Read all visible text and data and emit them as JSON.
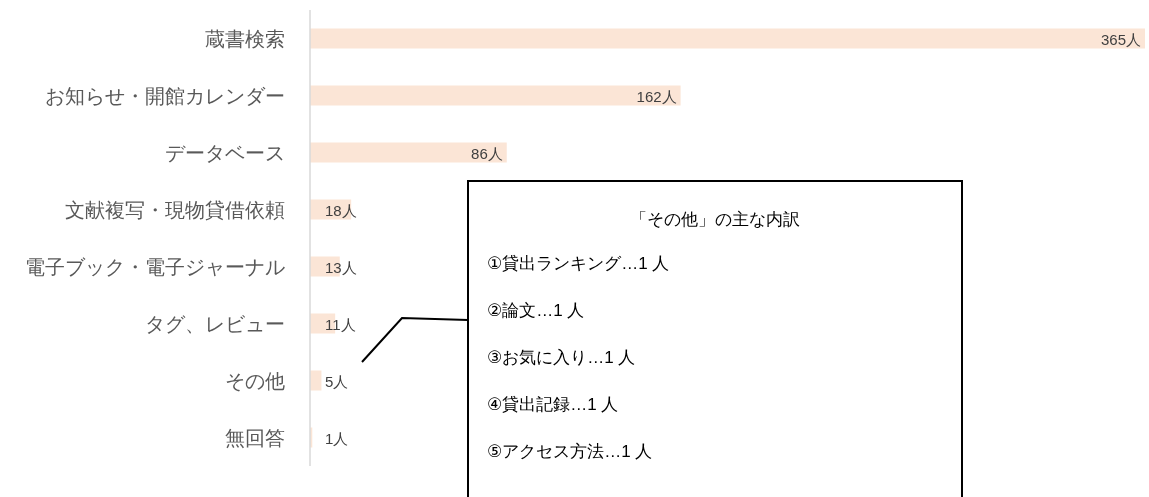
{
  "chart_data": {
    "type": "bar",
    "orientation": "horizontal",
    "categories": [
      "蔵書検索",
      "お知らせ・開館カレンダー",
      "データベース",
      "文献複写・現物貸借依頼",
      "電子ブック・電子ジャーナル",
      "タグ、レビュー",
      "その他",
      "無回答"
    ],
    "values": [
      365,
      162,
      86,
      18,
      13,
      11,
      5,
      1
    ],
    "value_labels": [
      "365人",
      "162人",
      "86人",
      "18人",
      "13人",
      "11人",
      "5人",
      "1人"
    ],
    "color": "#fbe5d6",
    "annotations": [
      "「その他」の主な内訳",
      "①貸出ランキング…1 人",
      "②論文…1 人",
      "③お気に入り…1 人",
      "④貸出記録…1 人",
      "⑤アクセス方法…1 人"
    ]
  }
}
